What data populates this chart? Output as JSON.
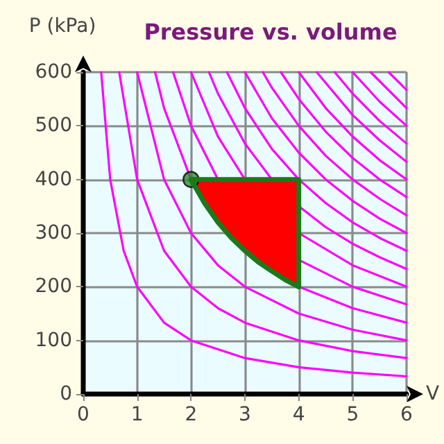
{
  "chart_data": {
    "type": "line",
    "title": "Pressure vs. volume",
    "xlabel": "V",
    "ylabel": "P (kPa)",
    "xlim": [
      0,
      6
    ],
    "xticks": [
      0,
      1,
      2,
      3,
      4,
      5,
      6
    ],
    "ylim": [
      0,
      600
    ],
    "yticks": [
      0,
      100,
      200,
      300,
      400,
      500,
      600
    ],
    "grid": true,
    "series": [
      {
        "color": "#ff00ff",
        "x": [
          0.333,
          0.5,
          0.75,
          1,
          1.5,
          2,
          3,
          4,
          5,
          6
        ],
        "values": [
          600,
          400,
          267,
          200,
          133,
          100,
          67,
          50,
          40,
          33
        ]
      },
      {
        "color": "#ff00ff",
        "x": [
          0.667,
          1,
          1.5,
          2,
          2.5,
          3,
          4,
          5,
          6
        ],
        "values": [
          600,
          400,
          267,
          200,
          160,
          133,
          100,
          80,
          67
        ]
      },
      {
        "color": "#ff00ff",
        "x": [
          1,
          1.5,
          2,
          2.5,
          3,
          4,
          5,
          6
        ],
        "values": [
          600,
          400,
          300,
          240,
          200,
          150,
          120,
          100
        ]
      },
      {
        "color": "#ff00ff",
        "x": [
          1.333,
          1.5,
          2,
          2.5,
          3,
          4,
          5,
          6
        ],
        "values": [
          600,
          533,
          400,
          null,
          null,
          200,
          160,
          133
        ]
      },
      {
        "color": "#ff00ff",
        "x": [
          1.667,
          2,
          2.5,
          3,
          4,
          5,
          6
        ],
        "values": [
          600,
          500,
          400,
          null,
          250,
          200,
          167
        ]
      },
      {
        "color": "#ff00ff",
        "x": [
          2,
          2.5,
          3,
          4,
          5,
          6
        ],
        "values": [
          600,
          480,
          400,
          300,
          240,
          200
        ]
      },
      {
        "color": "#ff00ff",
        "x": [
          2.333,
          2.5,
          3,
          3.5,
          4,
          4.5,
          5,
          5.5,
          6
        ],
        "values": [
          600,
          560,
          467,
          400,
          350,
          311,
          280,
          255,
          233
        ]
      },
      {
        "color": "#ff00ff",
        "x": [
          2.667,
          3,
          3.5,
          4,
          4.5,
          5,
          5.5,
          6
        ],
        "values": [
          600,
          533,
          457,
          400,
          356,
          320,
          291,
          267
        ]
      },
      {
        "color": "#ff00ff",
        "x": [
          3,
          3.5,
          4,
          4.5,
          5,
          5.5,
          6
        ],
        "values": [
          600,
          514,
          450,
          400,
          360,
          327,
          300
        ]
      },
      {
        "color": "#ff00ff",
        "x": [
          3.333,
          3.5,
          4,
          4.5,
          5,
          5.5,
          6
        ],
        "values": [
          600,
          571,
          500,
          444,
          400,
          364,
          333
        ]
      },
      {
        "color": "#ff00ff",
        "x": [
          3.667,
          4,
          4.5,
          5,
          5.5,
          6
        ],
        "values": [
          600,
          550,
          489,
          440,
          400,
          367
        ]
      },
      {
        "color": "#ff00ff",
        "x": [
          4,
          4.5,
          5,
          5.5,
          6
        ],
        "values": [
          600,
          533,
          480,
          436,
          400
        ]
      },
      {
        "color": "#ff00ff",
        "x": [
          4.333,
          5,
          5.5,
          6
        ],
        "values": [
          600,
          520,
          473,
          433
        ]
      },
      {
        "color": "#ff00ff",
        "x": [
          4.667,
          5,
          5.5,
          6
        ],
        "values": [
          600,
          560,
          509,
          467
        ]
      },
      {
        "color": "#ff00ff",
        "x": [
          5,
          5.5,
          6
        ],
        "values": [
          600,
          545,
          500
        ]
      },
      {
        "color": "#ff00ff",
        "x": [
          5.333,
          6
        ],
        "values": [
          600,
          533
        ]
      },
      {
        "color": "#ff00ff",
        "x": [
          5.667,
          6
        ],
        "values": [
          600,
          567
        ]
      },
      {
        "type": "area",
        "color": "#ff0000",
        "x": [
          2,
          4,
          4,
          3.75,
          3.5,
          3.25,
          3,
          2.75,
          2.5,
          2.25,
          2
        ],
        "values": [
          400,
          400,
          200,
          213,
          229,
          246,
          267,
          291,
          320,
          356,
          400
        ]
      },
      {
        "color": "#1a7a1a",
        "x": [
          2,
          4,
          4
        ],
        "values": [
          400,
          400,
          200
        ]
      },
      {
        "color": "#1a7a1a",
        "x": [
          2,
          2.25,
          2.5,
          2.75,
          3,
          3.25,
          3.5,
          3.75,
          4
        ],
        "values": [
          400,
          356,
          320,
          291,
          267,
          246,
          229,
          213,
          200
        ]
      },
      {
        "type": "scatter",
        "marker": "circle",
        "color": "#2e8b2e",
        "x": [
          2
        ],
        "values": [
          400
        ]
      }
    ]
  }
}
